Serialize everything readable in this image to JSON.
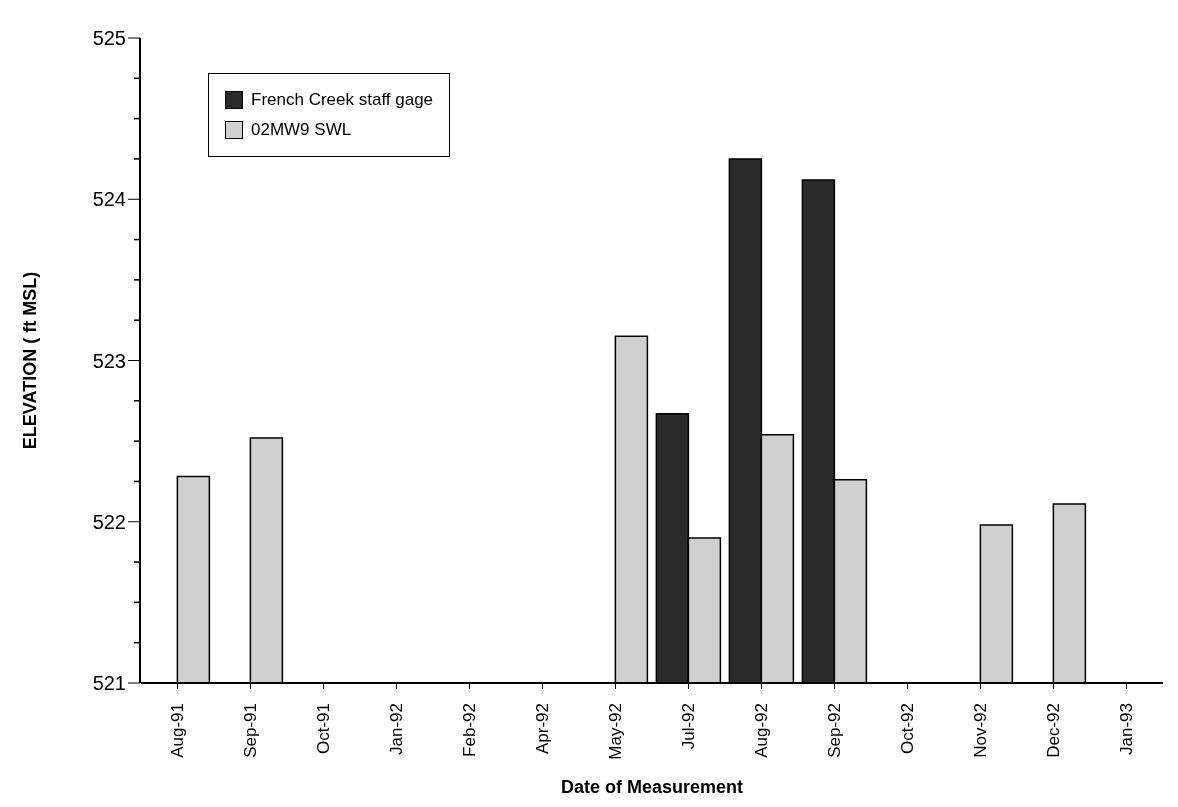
{
  "chart_data": {
    "type": "bar",
    "xlabel": "Date of Measurement",
    "ylabel": "ELEVATION ( ft MSL)",
    "categories": [
      "Aug-91",
      "Sep-91",
      "Oct-91",
      "Jan-92",
      "Feb-92",
      "Apr-92",
      "May-92",
      "Jul-92",
      "Aug-92",
      "Sep-92",
      "Oct-92",
      "Nov-92",
      "Dec-92",
      "Jan-93"
    ],
    "series": [
      {
        "name": "French Creek staff gage",
        "color": "#2a2a2a",
        "values": [
          null,
          null,
          null,
          null,
          null,
          null,
          null,
          522.67,
          524.25,
          524.12,
          null,
          null,
          null,
          null
        ]
      },
      {
        "name": "02MW9 SWL",
        "color": "#d0d0d0",
        "values": [
          522.28,
          522.52,
          null,
          null,
          null,
          null,
          523.15,
          521.9,
          522.54,
          522.26,
          null,
          521.98,
          522.11,
          null
        ]
      }
    ],
    "ylim": [
      521,
      525
    ],
    "yticks": [
      521,
      522,
      523,
      524,
      525
    ],
    "legend": "top left"
  }
}
